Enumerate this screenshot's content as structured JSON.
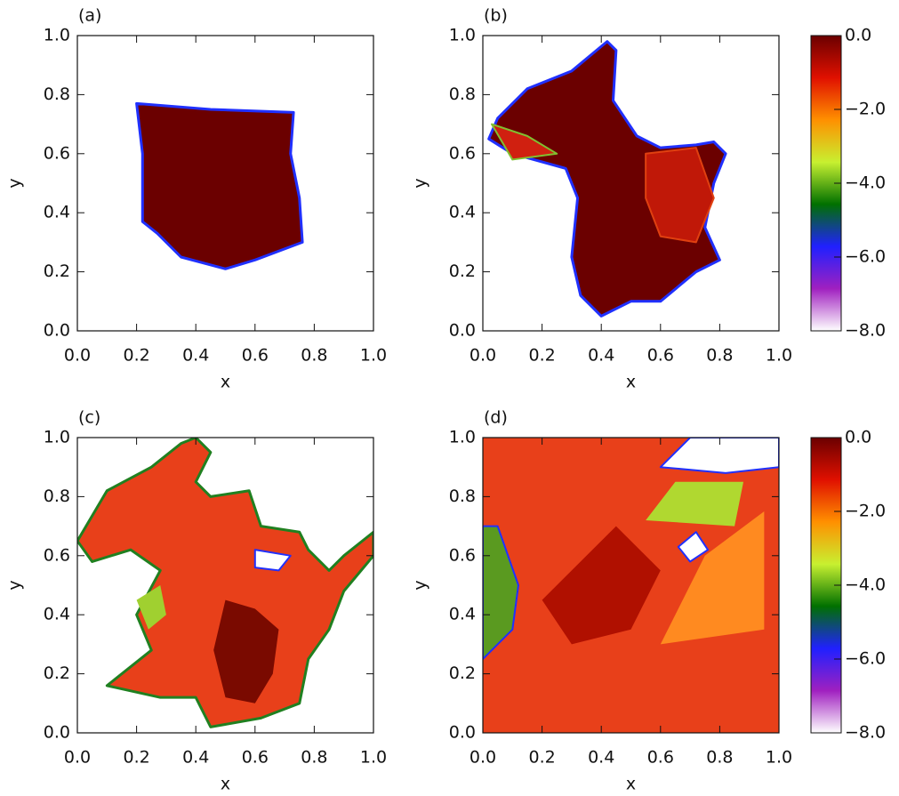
{
  "chart_data": [
    {
      "type": "image",
      "panel_label": "(a)",
      "xlabel": "x",
      "ylabel": "y",
      "xlim": [
        0,
        1
      ],
      "ylim": [
        0,
        1
      ],
      "xticks": [
        {
          "value": 0,
          "label": "0.0"
        },
        {
          "value": 0.2,
          "label": "0.2"
        },
        {
          "value": 0.4,
          "label": "0.4"
        },
        {
          "value": 0.6,
          "label": "0.6"
        },
        {
          "value": 0.8,
          "label": "0.8"
        },
        {
          "value": 1,
          "label": "1.0"
        }
      ],
      "yticks": [
        {
          "value": 0,
          "label": "0.0"
        },
        {
          "value": 0.2,
          "label": "0.2"
        },
        {
          "value": 0.4,
          "label": "0.4"
        },
        {
          "value": 0.6,
          "label": "0.6"
        },
        {
          "value": 0.8,
          "label": "0.8"
        },
        {
          "value": 1,
          "label": "1.0"
        }
      ]
    },
    {
      "type": "image",
      "panel_label": "(b)",
      "xlabel": "x",
      "ylabel": "y",
      "xlim": [
        0,
        1
      ],
      "ylim": [
        0,
        1
      ],
      "xticks": [
        {
          "value": 0,
          "label": "0.0"
        },
        {
          "value": 0.2,
          "label": "0.2"
        },
        {
          "value": 0.4,
          "label": "0.4"
        },
        {
          "value": 0.6,
          "label": "0.6"
        },
        {
          "value": 0.8,
          "label": "0.8"
        },
        {
          "value": 1,
          "label": "1.0"
        }
      ],
      "yticks": [
        {
          "value": 0,
          "label": "0.0"
        },
        {
          "value": 0.2,
          "label": "0.2"
        },
        {
          "value": 0.4,
          "label": "0.4"
        },
        {
          "value": 0.6,
          "label": "0.6"
        },
        {
          "value": 0.8,
          "label": "0.8"
        },
        {
          "value": 1,
          "label": "1.0"
        }
      ],
      "colorbar": {
        "lim": [
          -8,
          0
        ],
        "colormap": [
          "#ffffff",
          "#a020c0",
          "#2020ff",
          "#007000",
          "#c8f030",
          "#ff9000",
          "#e01000",
          "#6b0000"
        ],
        "ticks": [
          {
            "value": 0,
            "label": "0.0"
          },
          {
            "value": -2,
            "label": "−2.0"
          },
          {
            "value": -4,
            "label": "−4.0"
          },
          {
            "value": -6,
            "label": "−6.0"
          },
          {
            "value": -8,
            "label": "−8.0"
          }
        ]
      }
    },
    {
      "type": "image",
      "panel_label": "(c)",
      "xlabel": "x",
      "ylabel": "y",
      "xlim": [
        0,
        1
      ],
      "ylim": [
        0,
        1
      ],
      "xticks": [
        {
          "value": 0,
          "label": "0.0"
        },
        {
          "value": 0.2,
          "label": "0.2"
        },
        {
          "value": 0.4,
          "label": "0.4"
        },
        {
          "value": 0.6,
          "label": "0.6"
        },
        {
          "value": 0.8,
          "label": "0.8"
        },
        {
          "value": 1,
          "label": "1.0"
        }
      ],
      "yticks": [
        {
          "value": 0,
          "label": "0.0"
        },
        {
          "value": 0.2,
          "label": "0.2"
        },
        {
          "value": 0.4,
          "label": "0.4"
        },
        {
          "value": 0.6,
          "label": "0.6"
        },
        {
          "value": 0.8,
          "label": "0.8"
        },
        {
          "value": 1,
          "label": "1.0"
        }
      ]
    },
    {
      "type": "image",
      "panel_label": "(d)",
      "xlabel": "x",
      "ylabel": "y",
      "xlim": [
        0,
        1
      ],
      "ylim": [
        0,
        1
      ],
      "xticks": [
        {
          "value": 0,
          "label": "0.0"
        },
        {
          "value": 0.2,
          "label": "0.2"
        },
        {
          "value": 0.4,
          "label": "0.4"
        },
        {
          "value": 0.6,
          "label": "0.6"
        },
        {
          "value": 0.8,
          "label": "0.8"
        },
        {
          "value": 1,
          "label": "1.0"
        }
      ],
      "yticks": [
        {
          "value": 0,
          "label": "0.0"
        },
        {
          "value": 0.2,
          "label": "0.2"
        },
        {
          "value": 0.4,
          "label": "0.4"
        },
        {
          "value": 0.6,
          "label": "0.6"
        },
        {
          "value": 0.8,
          "label": "0.8"
        },
        {
          "value": 1,
          "label": "1.0"
        }
      ],
      "colorbar": {
        "lim": [
          -8,
          0
        ],
        "colormap": [
          "#ffffff",
          "#a020c0",
          "#2020ff",
          "#007000",
          "#c8f030",
          "#ff9000",
          "#e01000",
          "#6b0000"
        ],
        "ticks": [
          {
            "value": 0,
            "label": "0.0"
          },
          {
            "value": -2,
            "label": "−2.0"
          },
          {
            "value": -4,
            "label": "−4.0"
          },
          {
            "value": -6,
            "label": "−6.0"
          },
          {
            "value": -8,
            "label": "−8.0"
          }
        ]
      }
    }
  ]
}
